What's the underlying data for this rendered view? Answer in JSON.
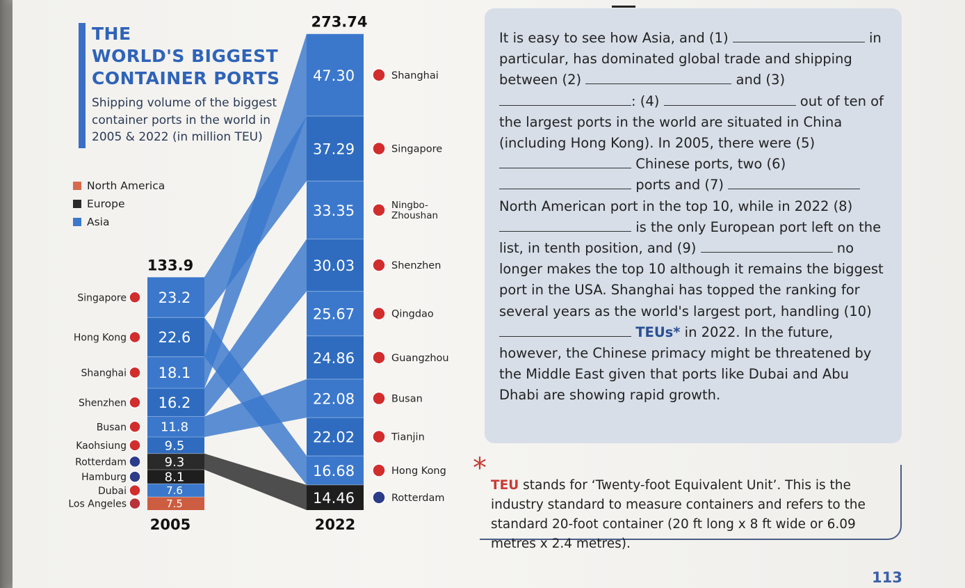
{
  "chart_data": {
    "type": "bar",
    "title_lines": [
      "THE",
      "WORLD'S BIGGEST",
      "CONTAINER PORTS"
    ],
    "subtitle_lines": [
      "Shipping volume of the biggest",
      "container ports in the world in",
      "2005 & 2022 (in million TEU)"
    ],
    "legend": [
      {
        "name": "North America",
        "color": "#d8694c"
      },
      {
        "name": "Europe",
        "color": "#2a2a2a"
      },
      {
        "name": "Asia",
        "color": "#3b78cc"
      }
    ],
    "categories": [
      "2005",
      "2022"
    ],
    "totals": {
      "2005": "133.9",
      "2022": "273.74"
    },
    "series_2005": [
      {
        "port": "Singapore",
        "value": 23.2,
        "label": "23.2",
        "region": "Asia"
      },
      {
        "port": "Hong Kong",
        "value": 22.6,
        "label": "22.6",
        "region": "Asia"
      },
      {
        "port": "Shanghai",
        "value": 18.1,
        "label": "18.1",
        "region": "Asia"
      },
      {
        "port": "Shenzhen",
        "value": 16.2,
        "label": "16.2",
        "region": "Asia"
      },
      {
        "port": "Busan",
        "value": 11.8,
        "label": "11.8",
        "region": "Asia"
      },
      {
        "port": "Kaohsiung",
        "value": 9.5,
        "label": "9.5",
        "region": "Asia"
      },
      {
        "port": "Rotterdam",
        "value": 9.3,
        "label": "9.3",
        "region": "Europe"
      },
      {
        "port": "Hamburg",
        "value": 8.1,
        "label": "8.1",
        "region": "Europe"
      },
      {
        "port": "Dubai",
        "value": 7.6,
        "label": "7.6",
        "region": "Asia"
      },
      {
        "port": "Los Angeles",
        "value": 7.5,
        "label": "7.5",
        "region": "North America"
      }
    ],
    "series_2022": [
      {
        "port": "Shanghai",
        "value": 47.3,
        "label": "47.30",
        "region": "Asia"
      },
      {
        "port": "Singapore",
        "value": 37.29,
        "label": "37.29",
        "region": "Asia"
      },
      {
        "port": "Ningbo-Zhoushan",
        "value": 33.35,
        "label": "33.35",
        "region": "Asia"
      },
      {
        "port": "Shenzhen",
        "value": 30.03,
        "label": "30.03",
        "region": "Asia"
      },
      {
        "port": "Qingdao",
        "value": 25.67,
        "label": "25.67",
        "region": "Asia"
      },
      {
        "port": "Guangzhou",
        "value": 24.86,
        "label": "24.86",
        "region": "Asia"
      },
      {
        "port": "Busan",
        "value": 22.08,
        "label": "22.08",
        "region": "Asia"
      },
      {
        "port": "Tianjin",
        "value": 22.02,
        "label": "22.02",
        "region": "Asia"
      },
      {
        "port": "Hong Kong",
        "value": 16.68,
        "label": "16.68",
        "region": "Asia"
      },
      {
        "port": "Rotterdam",
        "value": 14.46,
        "label": "14.46",
        "region": "Europe"
      }
    ]
  },
  "text": {
    "paragraph": [
      {
        "t": "It is easy to see how Asia, and (1) "
      },
      {
        "blank": 1
      },
      {
        "t": " in particular, has dominated global trade and shipping between (2) "
      },
      {
        "blank": 2
      },
      {
        "t": " and (3) "
      },
      {
        "blank": 3
      },
      {
        "t": ": (4) "
      },
      {
        "blank": 4
      },
      {
        "t": " out of ten of the largest ports in the world are situated in China (including Hong Kong). In 2005, there were (5) "
      },
      {
        "blank": 5
      },
      {
        "t": " Chinese ports, two (6) "
      },
      {
        "blank": 6
      },
      {
        "t": " ports and (7) "
      },
      {
        "blank": 7
      },
      {
        "t": " North American port in the top 10, while in 2022 (8) "
      },
      {
        "blank": 8
      },
      {
        "t": " is the only European port left on the list, in tenth position, and (9) "
      },
      {
        "blank": 9
      },
      {
        "t": " no longer makes the top 10 although it remains the biggest port in the USA. Shanghai has topped the ranking for several years as the world's largest port, handling (10) "
      },
      {
        "blank": 10
      },
      {
        "t": " "
      },
      {
        "strong": "TEUs*"
      },
      {
        "t": " in 2022. In the future, however, the Chinese primacy might be threatened by the Middle East given that ports like Dubai and Abu Dhabi are showing rapid growth."
      }
    ],
    "note_term": "TEU",
    "note_body": " stands for ‘Twenty-foot Equivalent Unit’. This is the industry standard to measure containers and refers to the standard 20-foot container (20 ft long x 8 ft wide or 6.09 metres x 2.4 metres).",
    "page_number": "113"
  }
}
